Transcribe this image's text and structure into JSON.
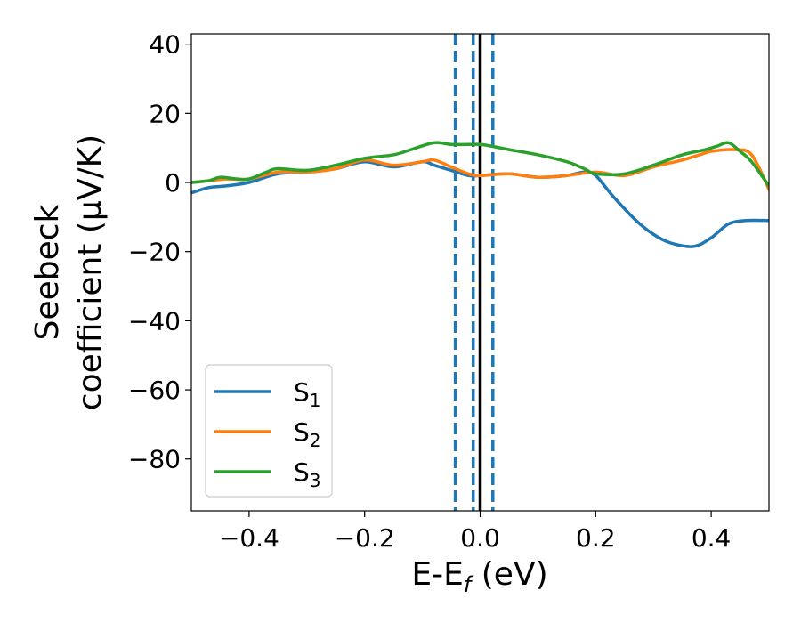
{
  "chart_data": {
    "type": "line",
    "xlabel": "E-E",
    "xlabel_sub": "f",
    "xlabel_unit": " (eV)",
    "ylabel_line1": "Seebeck",
    "ylabel_line2": "coefficient  (μV/K)",
    "xlim": [
      -0.5,
      0.5
    ],
    "ylim": [
      -95,
      43
    ],
    "x_ticks": [
      -0.4,
      -0.2,
      0.0,
      0.2,
      0.4
    ],
    "x_tick_labels": [
      "−0.4",
      "−0.2",
      "0.0",
      "0.2",
      "0.4"
    ],
    "y_ticks": [
      40,
      20,
      0,
      -20,
      -40,
      -60,
      -80
    ],
    "y_tick_labels": [
      "40",
      "20",
      "0",
      "−20",
      "−40",
      "−60",
      "−80"
    ],
    "grid": false,
    "legend_position": "lower-left",
    "vertical_lines": [
      {
        "x": -0.043,
        "style": "dashed",
        "color": "#1f77b4"
      },
      {
        "x": -0.012,
        "style": "dashed",
        "color": "#1f77b4"
      },
      {
        "x": 0.0,
        "style": "solid",
        "color": "#000000"
      },
      {
        "x": 0.022,
        "style": "dashed",
        "color": "#1f77b4"
      }
    ],
    "series": [
      {
        "name": "S",
        "sub": "1",
        "color": "#1f77b4",
        "x": [
          -0.5,
          -0.47,
          -0.44,
          -0.4,
          -0.35,
          -0.3,
          -0.25,
          -0.2,
          -0.15,
          -0.1,
          -0.08,
          -0.05,
          -0.02,
          0.0,
          0.05,
          0.1,
          0.15,
          0.18,
          0.2,
          0.23,
          0.27,
          0.3,
          0.33,
          0.37,
          0.4,
          0.43,
          0.46,
          0.5
        ],
        "y": [
          -3,
          -1.5,
          -1,
          0,
          2.5,
          3,
          4,
          6,
          4.5,
          6,
          5,
          3.5,
          2,
          2,
          2.5,
          1.5,
          2,
          3,
          2,
          -4,
          -11,
          -15,
          -17.5,
          -18.5,
          -16,
          -12,
          -11,
          -11
        ]
      },
      {
        "name": "S",
        "sub": "2",
        "color": "#ff7f0e",
        "x": [
          -0.5,
          -0.47,
          -0.44,
          -0.4,
          -0.35,
          -0.3,
          -0.25,
          -0.2,
          -0.15,
          -0.1,
          -0.08,
          -0.05,
          -0.02,
          0.0,
          0.05,
          0.1,
          0.15,
          0.2,
          0.25,
          0.3,
          0.35,
          0.38,
          0.4,
          0.44,
          0.47,
          0.5
        ],
        "y": [
          0,
          0.5,
          1,
          1,
          3,
          3,
          4,
          6.5,
          5,
          6,
          6.5,
          4.5,
          2.5,
          2,
          2.5,
          1.5,
          2,
          3,
          2,
          4.5,
          6.5,
          8,
          9,
          9.5,
          8,
          -2
        ]
      },
      {
        "name": "S",
        "sub": "3",
        "color": "#2ca02c",
        "x": [
          -0.5,
          -0.47,
          -0.45,
          -0.42,
          -0.4,
          -0.37,
          -0.35,
          -0.3,
          -0.25,
          -0.2,
          -0.15,
          -0.12,
          -0.08,
          -0.05,
          -0.02,
          0.0,
          0.02,
          0.05,
          0.1,
          0.15,
          0.18,
          0.2,
          0.25,
          0.3,
          0.35,
          0.39,
          0.41,
          0.43,
          0.45,
          0.47,
          0.5
        ],
        "y": [
          0,
          0.5,
          1.5,
          1,
          1,
          3,
          4,
          3.5,
          5,
          7,
          8,
          9.5,
          11.5,
          11,
          11,
          11,
          10.5,
          9.5,
          8,
          6,
          4,
          2.5,
          2.5,
          5,
          8,
          9.5,
          10.5,
          11.5,
          9,
          6,
          -1
        ]
      }
    ]
  }
}
